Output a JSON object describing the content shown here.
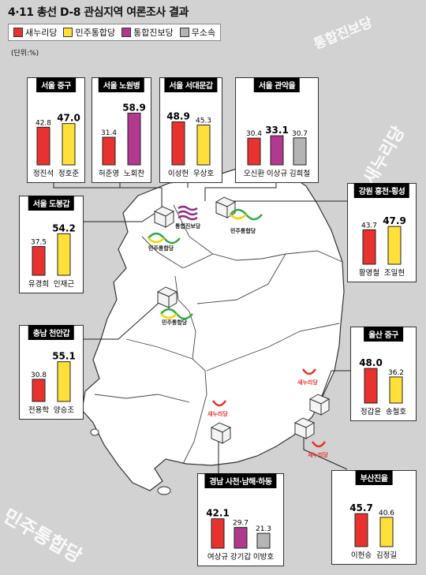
{
  "title": "4·11 총선 D-8 관심지역 여론조사 결과",
  "unit": "(단위:%)",
  "legend": [
    {
      "label": "새누리당",
      "color": "#e8322f"
    },
    {
      "label": "민주통합당",
      "color": "#ffe03a"
    },
    {
      "label": "통합진보당",
      "color": "#b1398f"
    },
    {
      "label": "무소속",
      "color": "#b4b4b4"
    }
  ],
  "watermarks": {
    "top_right_1": "통합진보당",
    "top_right_2": "새누리당",
    "bottom_left": "민주통합당"
  },
  "map_labels": {
    "unified_progressive": "통합진보당",
    "democratic_1": "민주통합당",
    "democratic_2": "민주통합당",
    "democratic_3": "민주통합당",
    "saenuri_1": "새누리당",
    "saenuri_2": "새누리당",
    "saenuri_3": "새누리당"
  },
  "chart_data": [
    {
      "type": "bar",
      "title": "서울 중구",
      "ylim": [
        0,
        70
      ],
      "categories": [
        "정진석",
        "정호준"
      ],
      "values": [
        42.8,
        47.0
      ],
      "value_labels": [
        "42.8",
        "47.0"
      ],
      "highlight": [
        false,
        true
      ],
      "colors": [
        "#e8322f",
        "#ffe03a"
      ]
    },
    {
      "type": "bar",
      "title": "서울 노원병",
      "ylim": [
        0,
        70
      ],
      "categories": [
        "허준영",
        "노회찬"
      ],
      "values": [
        31.4,
        58.9
      ],
      "value_labels": [
        "31.4",
        "58.9"
      ],
      "highlight": [
        false,
        true
      ],
      "colors": [
        "#e8322f",
        "#b1398f"
      ]
    },
    {
      "type": "bar",
      "title": "서울 서대문갑",
      "ylim": [
        0,
        70
      ],
      "categories": [
        "이성헌",
        "우상호"
      ],
      "values": [
        48.9,
        45.3
      ],
      "value_labels": [
        "48.9",
        "45.3"
      ],
      "highlight": [
        true,
        false
      ],
      "colors": [
        "#e8322f",
        "#ffe03a"
      ]
    },
    {
      "type": "bar",
      "title": "서울 관악을",
      "ylim": [
        0,
        70
      ],
      "categories": [
        "오신환",
        "이상규",
        "김희철"
      ],
      "values": [
        30.4,
        33.1,
        30.7
      ],
      "value_labels": [
        "30.4",
        "33.1",
        "30.7"
      ],
      "highlight": [
        false,
        true,
        false
      ],
      "colors": [
        "#e8322f",
        "#b1398f",
        "#b4b4b4"
      ]
    },
    {
      "type": "bar",
      "title": "서울 도봉갑",
      "ylim": [
        0,
        70
      ],
      "categories": [
        "유경희",
        "인재근"
      ],
      "values": [
        37.5,
        54.2
      ],
      "value_labels": [
        "37.5",
        "54.2"
      ],
      "highlight": [
        false,
        true
      ],
      "colors": [
        "#e8322f",
        "#ffe03a"
      ]
    },
    {
      "type": "bar",
      "title": "강원 홍천·횡성",
      "ylim": [
        0,
        70
      ],
      "categories": [
        "황영철",
        "조일현"
      ],
      "values": [
        43.7,
        47.9
      ],
      "value_labels": [
        "43.7",
        "47.9"
      ],
      "highlight": [
        false,
        true
      ],
      "colors": [
        "#e8322f",
        "#ffe03a"
      ]
    },
    {
      "type": "bar",
      "title": "충남 천안갑",
      "ylim": [
        0,
        70
      ],
      "categories": [
        "전용학",
        "양승조"
      ],
      "values": [
        30.8,
        55.1
      ],
      "value_labels": [
        "30.8",
        "55.1"
      ],
      "highlight": [
        false,
        true
      ],
      "colors": [
        "#e8322f",
        "#ffe03a"
      ]
    },
    {
      "type": "bar",
      "title": "울산 중구",
      "ylim": [
        0,
        70
      ],
      "categories": [
        "정갑윤",
        "송철호"
      ],
      "values": [
        48.0,
        36.2
      ],
      "value_labels": [
        "48.0",
        "36.2"
      ],
      "highlight": [
        true,
        false
      ],
      "colors": [
        "#e8322f",
        "#ffe03a"
      ]
    },
    {
      "type": "bar",
      "title": "경남 사천·남해·하동",
      "ylim": [
        0,
        70
      ],
      "categories": [
        "여상규",
        "강기갑",
        "이방호"
      ],
      "values": [
        42.1,
        29.7,
        21.3
      ],
      "value_labels": [
        "42.1",
        "29.7",
        "21.3"
      ],
      "highlight": [
        true,
        false,
        false
      ],
      "colors": [
        "#e8322f",
        "#b1398f",
        "#b4b4b4"
      ]
    },
    {
      "type": "bar",
      "title": "부산진을",
      "ylim": [
        0,
        70
      ],
      "categories": [
        "이헌승",
        "김정길"
      ],
      "values": [
        45.7,
        40.6
      ],
      "value_labels": [
        "45.7",
        "40.6"
      ],
      "highlight": [
        true,
        false
      ],
      "colors": [
        "#e8322f",
        "#ffe03a"
      ]
    }
  ]
}
